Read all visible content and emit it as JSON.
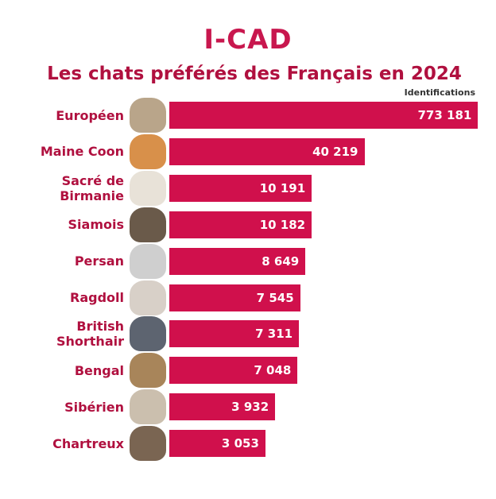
{
  "logo": "I-CAD",
  "chart_data": {
    "type": "bar",
    "orientation": "horizontal",
    "title": "Les chats préférés des Français en 2024",
    "value_axis_label": "Identifications",
    "categories": [
      "Européen",
      "Maine Coon",
      "Sacré de Birmanie",
      "Siamois",
      "Persan",
      "Ragdoll",
      "British Shorthair",
      "Bengal",
      "Sibérien",
      "Chartreux"
    ],
    "values": [
      773181,
      40219,
      10191,
      10182,
      8649,
      7545,
      7311,
      7048,
      3932,
      3053
    ],
    "value_labels": [
      "773 181",
      "40 219",
      "10 191",
      "10 182",
      "8 649",
      "7 545",
      "7 311",
      "7 048",
      "3 932",
      "3 053"
    ],
    "color": "#d0104c",
    "log_scale": true,
    "xlim": [
      250,
      800000
    ]
  }
}
